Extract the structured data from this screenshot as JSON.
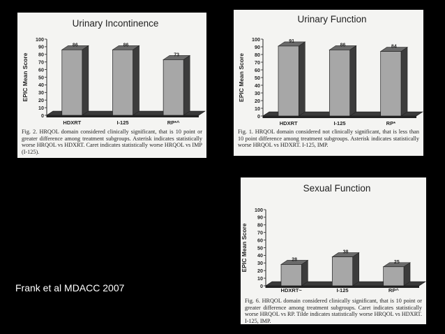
{
  "credit": "Frank et al MDACC 2007",
  "chart_data": [
    {
      "type": "bar",
      "title": "Urinary Incontinence",
      "ylabel": "EPIC Mean Score",
      "categories": [
        "HDXRT",
        "I-125",
        "RP*^"
      ],
      "values": [
        86,
        86,
        73
      ],
      "data_labels": [
        "86",
        "86",
        "73"
      ],
      "ylim": [
        0,
        100
      ],
      "yticks": [
        "0",
        "10",
        "20",
        "30",
        "40",
        "50",
        "60",
        "70",
        "80",
        "90",
        "100"
      ],
      "caption": "Fig. 2.  HRQOL domain considered clinically significant, that is 10 point or greater difference among treatment subgroups. Asterisk indicates statistically worse HRQOL vs HDXRT. Caret indicates statistically worse HRQOL vs IMP (I-125)."
    },
    {
      "type": "bar",
      "title": "Urinary Function",
      "ylabel": "EPIC Mean Score",
      "categories": [
        "HDXRT",
        "I-125",
        "RP*"
      ],
      "values": [
        91,
        86,
        84
      ],
      "data_labels": [
        "91",
        "86",
        "84"
      ],
      "ylim": [
        0,
        100
      ],
      "yticks": [
        "0",
        "10",
        "20",
        "30",
        "40",
        "50",
        "60",
        "70",
        "80",
        "90",
        "100"
      ],
      "caption": "Fig. 1.  HRQOL domain considered not clinically significant, that is less than 10 point difference among treatment subgroups. Asterisk indicates statistically worse HRQOL vs HDXRT. I-125, IMP."
    },
    {
      "type": "bar",
      "title": "Sexual Function",
      "ylabel": "EPIC Mean Score",
      "categories": [
        "HDXRT~",
        "I-125",
        "RP^"
      ],
      "values": [
        28,
        38,
        25
      ],
      "data_labels": [
        "28",
        "38",
        "25"
      ],
      "ylim": [
        0,
        100
      ],
      "yticks": [
        "0",
        "10",
        "20",
        "30",
        "40",
        "50",
        "60",
        "70",
        "80",
        "90",
        "100"
      ],
      "caption": "Fig. 6.  HRQOL domain considered clinically significant, that is 10 point or greater difference among treatment subgroups. Caret indicates statistically worse HRQOL vs RP. Tilde indicates statistically worse HRQOL vs HDXRT. I-125, IMP."
    }
  ]
}
